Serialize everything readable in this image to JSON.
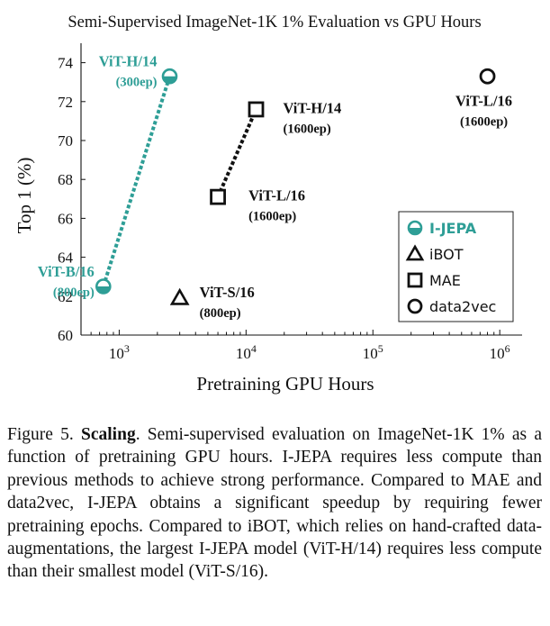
{
  "chart_data": {
    "type": "scatter",
    "title": "Semi-Supervised ImageNet-1K 1% Evaluation vs GPU Hours",
    "xlabel": "Pretraining GPU Hours",
    "ylabel": "Top 1 (%)",
    "x_scale": "log",
    "xlim": [
      500,
      1500000
    ],
    "ylim": [
      60,
      75
    ],
    "x_ticks": [
      1000,
      10000,
      100000,
      1000000
    ],
    "x_tick_labels": [
      {
        "base": "10",
        "exp": "3"
      },
      {
        "base": "10",
        "exp": "4"
      },
      {
        "base": "10",
        "exp": "5"
      },
      {
        "base": "10",
        "exp": "6"
      }
    ],
    "y_ticks": [
      60,
      62,
      64,
      66,
      68,
      70,
      72,
      74
    ],
    "grid": false,
    "legend_position": "bottom-right",
    "series": [
      {
        "name": "I-JEPA",
        "marker": "half-circle",
        "color": "#2e9e96",
        "connect": true,
        "points": [
          {
            "x": 750,
            "y": 62.5,
            "model": "ViT-B/16",
            "epochs": "(800ep)"
          },
          {
            "x": 2500,
            "y": 73.3,
            "model": "ViT-H/14",
            "epochs": "(300ep)"
          }
        ]
      },
      {
        "name": "iBOT",
        "marker": "triangle",
        "color": "#111111",
        "connect": false,
        "points": [
          {
            "x": 3000,
            "y": 61.9,
            "model": "ViT-S/16",
            "epochs": "(800ep)"
          }
        ]
      },
      {
        "name": "MAE",
        "marker": "square",
        "color": "#111111",
        "connect": true,
        "points": [
          {
            "x": 6000,
            "y": 67.1,
            "model": "ViT-L/16",
            "epochs": "(1600ep)"
          },
          {
            "x": 12000,
            "y": 71.6,
            "model": "ViT-H/14",
            "epochs": "(1600ep)"
          }
        ]
      },
      {
        "name": "data2vec",
        "marker": "circle",
        "color": "#111111",
        "connect": false,
        "points": [
          {
            "x": 800000,
            "y": 73.3,
            "model": "ViT-L/16",
            "epochs": "(1600ep)"
          }
        ]
      }
    ]
  },
  "caption": {
    "figure_label": "Figure 5.",
    "bold_title": "Scaling",
    "text": ". Semi-supervised evaluation on ImageNet-1K 1% as a function of pretraining GPU hours. I-JEPA requires less compute than previous methods to achieve strong performance. Compared to MAE and data2vec, I-JEPA obtains a significant speedup by requiring fewer pretraining epochs. Compared to iBOT, which relies on hand-crafted data-augmentations, the largest I-JEPA model (ViT-H/14) requires less compute than their smallest model (ViT-S/16)."
  }
}
